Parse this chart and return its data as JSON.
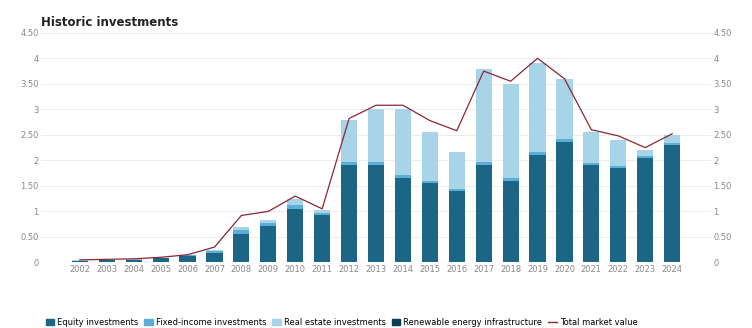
{
  "title": "Historic investments",
  "years": [
    2002,
    2003,
    2004,
    2005,
    2006,
    2007,
    2008,
    2009,
    2010,
    2011,
    2012,
    2013,
    2014,
    2015,
    2016,
    2017,
    2018,
    2019,
    2020,
    2021,
    2022,
    2023,
    2024
  ],
  "equity": [
    0.03,
    0.04,
    0.05,
    0.08,
    0.12,
    0.18,
    0.55,
    0.72,
    1.05,
    0.92,
    1.9,
    1.9,
    1.65,
    1.55,
    1.4,
    1.9,
    1.6,
    2.1,
    2.35,
    1.9,
    1.85,
    2.05,
    2.3
  ],
  "fixed_income": [
    0.005,
    0.005,
    0.005,
    0.01,
    0.02,
    0.05,
    0.08,
    0.06,
    0.08,
    0.04,
    0.06,
    0.06,
    0.06,
    0.05,
    0.04,
    0.06,
    0.05,
    0.06,
    0.06,
    0.05,
    0.04,
    0.04,
    0.04
  ],
  "real_estate": [
    0.005,
    0.005,
    0.005,
    0.005,
    0.01,
    0.02,
    0.07,
    0.06,
    0.12,
    0.06,
    0.84,
    1.04,
    1.29,
    0.95,
    0.73,
    1.84,
    1.85,
    1.74,
    1.19,
    0.6,
    0.51,
    0.11,
    0.16
  ],
  "renewable": [
    0.0,
    0.0,
    0.0,
    0.0,
    0.0,
    0.0,
    0.0,
    0.0,
    0.0,
    0.0,
    0.0,
    0.0,
    0.0,
    0.0,
    0.0,
    0.0,
    0.0,
    0.0,
    0.0,
    0.0,
    0.0,
    0.0,
    0.0
  ],
  "total_market_value": [
    0.05,
    0.06,
    0.07,
    0.1,
    0.15,
    0.3,
    0.92,
    1.0,
    1.3,
    1.05,
    2.82,
    3.08,
    3.08,
    2.78,
    2.58,
    3.75,
    3.55,
    4.0,
    3.6,
    2.6,
    2.48,
    2.25,
    2.52
  ],
  "color_equity": "#1c6585",
  "color_fixed": "#5bafd6",
  "color_real_estate": "#a8d4e8",
  "color_renewable": "#0d3d52",
  "color_line": "#8b2635",
  "ylim": [
    0,
    4.5
  ],
  "yticks": [
    0,
    0.5,
    1.0,
    1.5,
    2.0,
    2.5,
    3.0,
    3.5,
    4.0,
    4.5
  ],
  "background_color": "#ffffff",
  "title_fontsize": 8.5,
  "legend_labels": [
    "Equity investments",
    "Fixed-income investments",
    "Real estate investments",
    "Renewable energy infrastructure",
    "Total market value"
  ]
}
